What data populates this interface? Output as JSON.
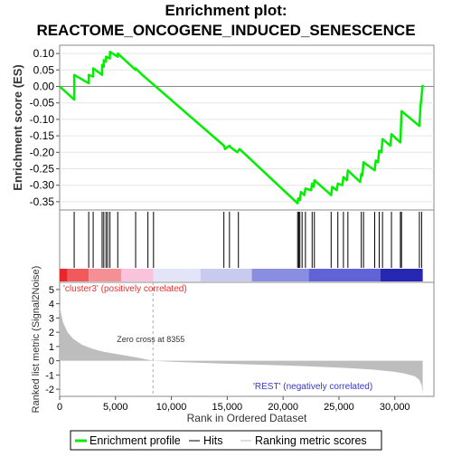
{
  "chart_data": {
    "type": "line",
    "title_line1": "Enrichment plot:",
    "title_line2": "REACTOME_ONCOGENE_INDUCED_SENESCENCE",
    "es_panel": {
      "ylabel": "Enrichment score (ES)",
      "ylim": [
        -0.375,
        0.125
      ],
      "yticks": [
        "0.10",
        "0.05",
        "0.00",
        "-0.05",
        "-0.10",
        "-0.15",
        "-0.20",
        "-0.25",
        "-0.30",
        "-0.35"
      ],
      "ytick_values": [
        0.1,
        0.05,
        0.0,
        -0.05,
        -0.1,
        -0.15,
        -0.2,
        -0.25,
        -0.3,
        -0.35
      ],
      "series": [
        {
          "name": "Enrichment profile",
          "color": "#00ee00",
          "x": [
            0,
            1300,
            1300,
            2600,
            2600,
            3000,
            3000,
            3800,
            3800,
            3950,
            3950,
            4150,
            4150,
            4500,
            4500,
            5200,
            5200,
            6800,
            6800,
            7400,
            14700,
            14800,
            15200,
            15300,
            15900,
            16100,
            21300,
            21350,
            21500,
            21600,
            21900,
            22000,
            22500,
            22600,
            22750,
            22800,
            24300,
            24400,
            24800,
            24900,
            25300,
            25400,
            25700,
            25800,
            26900,
            27000,
            27100,
            27200,
            28200,
            28300,
            28500,
            28600,
            28800,
            28900,
            29600,
            29700,
            30500,
            30600,
            32200,
            32300,
            32500
          ],
          "y": [
            0.0,
            -0.04,
            0.035,
            0.01,
            0.035,
            0.03,
            0.055,
            0.035,
            0.065,
            0.06,
            0.08,
            0.075,
            0.09,
            0.085,
            0.105,
            0.09,
            0.1,
            0.05,
            0.055,
            0.035,
            -0.18,
            -0.19,
            -0.18,
            -0.185,
            -0.2,
            -0.19,
            -0.355,
            -0.34,
            -0.345,
            -0.32,
            -0.33,
            -0.31,
            -0.315,
            -0.295,
            -0.305,
            -0.285,
            -0.33,
            -0.305,
            -0.315,
            -0.295,
            -0.3,
            -0.275,
            -0.285,
            -0.255,
            -0.29,
            -0.265,
            -0.27,
            -0.23,
            -0.255,
            -0.225,
            -0.23,
            -0.195,
            -0.2,
            -0.16,
            -0.18,
            -0.145,
            -0.17,
            -0.075,
            -0.12,
            -0.06,
            0.005
          ]
        }
      ]
    },
    "hits": {
      "positions": [
        1300,
        2600,
        3000,
        3800,
        3950,
        4150,
        4300,
        4500,
        5200,
        6800,
        7900,
        8400,
        14700,
        15200,
        16000,
        21300,
        21400,
        21500,
        21700,
        22000,
        22600,
        22800,
        24300,
        24900,
        25400,
        25800,
        27000,
        27200,
        28200,
        28600,
        28900,
        29700,
        30500,
        30600,
        32200,
        32400
      ]
    },
    "color_bar": {
      "segments": [
        {
          "start": 0,
          "end": 700,
          "color": "#e8262b"
        },
        {
          "start": 700,
          "end": 2600,
          "color": "#f2595c"
        },
        {
          "start": 2600,
          "end": 5500,
          "color": "#f58f93"
        },
        {
          "start": 5500,
          "end": 8400,
          "color": "#fbc3db"
        },
        {
          "start": 8400,
          "end": 12600,
          "color": "#e4e4f8"
        },
        {
          "start": 12600,
          "end": 17200,
          "color": "#c9caf0"
        },
        {
          "start": 17200,
          "end": 22300,
          "color": "#8a8ee2"
        },
        {
          "start": 22300,
          "end": 28700,
          "color": "#6063d6"
        },
        {
          "start": 28700,
          "end": 32500,
          "color": "#2526b2"
        }
      ],
      "pos_label": "'cluster3' (positively correlated)",
      "neg_label": "'REST' (negatively correlated)",
      "pos_label_color": "#e83030",
      "neg_label_color": "#3838c8"
    },
    "metric_panel": {
      "ylabel": "Ranked list metric (Signal2Noise)",
      "ylim": [
        -2.5,
        5.5
      ],
      "yticks": [
        "5",
        "4",
        "3",
        "2",
        "1",
        "0",
        "-1",
        "-2"
      ],
      "ytick_values": [
        5,
        4,
        3,
        2,
        1,
        0,
        -1,
        -2
      ],
      "zero_cross_label": "Zero cross at 8355",
      "zero_cross": 8355,
      "fill_color": "#bdbdbd",
      "curve_x": [
        0,
        300,
        700,
        1200,
        2000,
        3000,
        4000,
        5500,
        7000,
        8355,
        10000,
        14000,
        18000,
        22000,
        25000,
        28000,
        30000,
        31000,
        31800,
        32200,
        32400,
        32500
      ],
      "curve_y": [
        3.8,
        2.7,
        2.0,
        1.55,
        1.12,
        0.82,
        0.62,
        0.42,
        0.22,
        0.0,
        -0.07,
        -0.18,
        -0.28,
        -0.38,
        -0.48,
        -0.62,
        -0.78,
        -0.92,
        -1.1,
        -1.35,
        -1.7,
        -2.3
      ]
    },
    "x_axis": {
      "xlabel": "Rank in Ordered Dataset",
      "xlim": [
        0,
        33500
      ],
      "xticks": [
        "0",
        "5,000",
        "10,000",
        "15,000",
        "20,000",
        "25,000",
        "30,000"
      ],
      "xtick_values": [
        0,
        5000,
        10000,
        15000,
        20000,
        25000,
        30000
      ]
    },
    "legend": {
      "placement": "bottom",
      "items": [
        {
          "label": "Enrichment profile",
          "color": "#00ee00"
        },
        {
          "label": "Hits",
          "color": "#000000"
        },
        {
          "label": "Ranking metric scores",
          "color": "#bdbdbd"
        }
      ]
    }
  }
}
